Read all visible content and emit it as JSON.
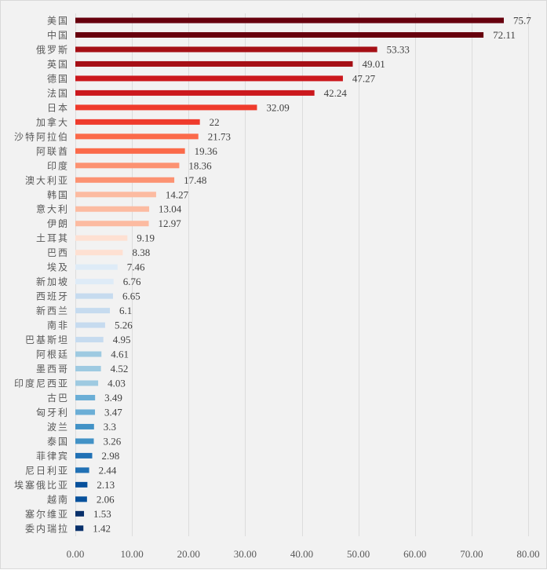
{
  "chart_data": {
    "type": "bar",
    "orientation": "horizontal",
    "title": "",
    "xlabel": "",
    "ylabel": "",
    "xlim": [
      0,
      80
    ],
    "xticks": [
      "0.00",
      "10.00",
      "20.00",
      "30.00",
      "40.00",
      "50.00",
      "60.00",
      "70.00",
      "80.00"
    ],
    "xtick_values": [
      0,
      10,
      20,
      30,
      40,
      50,
      60,
      70,
      80
    ],
    "grid": "vertical",
    "legend": "none",
    "categories": [
      "美国",
      "中国",
      "俄罗斯",
      "英国",
      "德国",
      "法国",
      "日本",
      "加拿大",
      "沙特阿拉伯",
      "阿联酋",
      "印度",
      "澳大利亚",
      "韩国",
      "意大利",
      "伊朗",
      "土耳其",
      "巴西",
      "埃及",
      "新加坡",
      "西班牙",
      "新西兰",
      "南非",
      "巴基斯坦",
      "阿根廷",
      "墨西哥",
      "印度尼西亚",
      "古巴",
      "匈牙利",
      "波兰",
      "泰国",
      "菲律宾",
      "尼日利亚",
      "埃塞俄比亚",
      "越南",
      "塞尔维亚",
      "委内瑞拉"
    ],
    "values": [
      75.7,
      72.11,
      53.33,
      49.01,
      47.27,
      42.24,
      32.09,
      22,
      21.73,
      19.36,
      18.36,
      17.48,
      14.27,
      13.04,
      12.97,
      9.19,
      8.38,
      7.46,
      6.76,
      6.65,
      6.1,
      5.26,
      4.95,
      4.61,
      4.52,
      4.03,
      3.49,
      3.47,
      3.3,
      3.26,
      2.98,
      2.44,
      2.13,
      2.06,
      1.53,
      1.42
    ],
    "value_labels": [
      "75.7",
      "72.11",
      "53.33",
      "49.01",
      "47.27",
      "42.24",
      "32.09",
      "22",
      "21.73",
      "19.36",
      "18.36",
      "17.48",
      "14.27",
      "13.04",
      "12.97",
      "9.19",
      "8.38",
      "7.46",
      "6.76",
      "6.65",
      "6.1",
      "5.26",
      "4.95",
      "4.61",
      "4.52",
      "4.03",
      "3.49",
      "3.47",
      "3.3",
      "3.26",
      "2.98",
      "2.44",
      "2.13",
      "2.06",
      "1.53",
      "1.42"
    ],
    "colors": [
      "#67000d",
      "#67000d",
      "#a50f15",
      "#a50f15",
      "#cb181d",
      "#cb181d",
      "#ef3b2c",
      "#ef3b2c",
      "#fb6a4a",
      "#fb6a4a",
      "#fc9272",
      "#fc9272",
      "#fcbba1",
      "#fcbba1",
      "#fcbba1",
      "#fee0d2",
      "#fee0d2",
      "#deebf7",
      "#deebf7",
      "#c6dbef",
      "#c6dbef",
      "#c6dbef",
      "#c6dbef",
      "#9ecae1",
      "#9ecae1",
      "#9ecae1",
      "#6baed6",
      "#6baed6",
      "#4292c6",
      "#4292c6",
      "#2171b5",
      "#2171b5",
      "#08519c",
      "#08519c",
      "#08306b",
      "#08306b"
    ]
  }
}
